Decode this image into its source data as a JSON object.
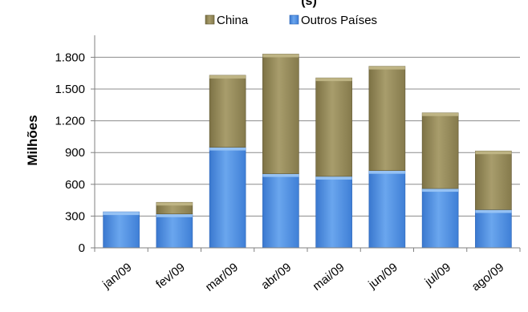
{
  "chart_data": {
    "type": "bar",
    "stacked": true,
    "title": "(s)",
    "ylabel": "Milhões",
    "xlabel": "",
    "categories": [
      "jan/09",
      "fev/09",
      "mar/09",
      "abr/09",
      "mai/09",
      "jun/09",
      "jul/09",
      "ago/09"
    ],
    "series": [
      {
        "name": "Outros Países",
        "color": "#4f8fe0",
        "values": [
          340,
          320,
          950,
          700,
          675,
          730,
          560,
          360
        ]
      },
      {
        "name": "China",
        "color": "#9c9060",
        "values": [
          0,
          110,
          680,
          1130,
          930,
          985,
          715,
          555
        ]
      }
    ],
    "ylim": [
      0,
      2000
    ],
    "yticks": [
      0,
      300,
      600,
      900,
      1200,
      1500,
      1800
    ],
    "ytick_labels": [
      "0",
      "300",
      "600",
      "900",
      "1.200",
      "1.500",
      "1.800"
    ],
    "grid": true,
    "legend_position": "top",
    "legend_order": [
      "China",
      "Outros Países"
    ]
  }
}
